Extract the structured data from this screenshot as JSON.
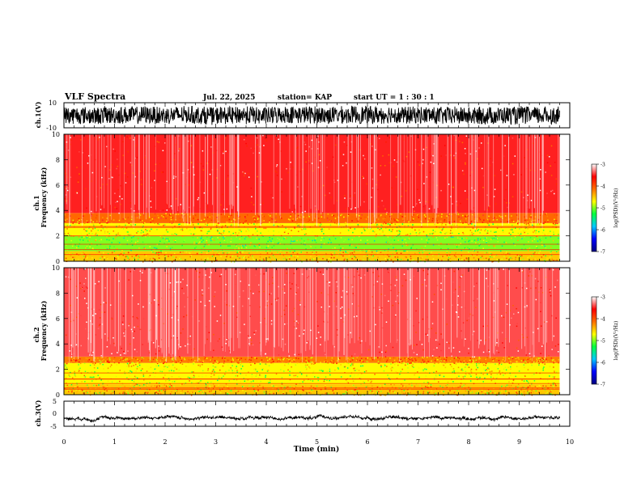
{
  "header": {
    "title": "VLF Spectra",
    "date": "Jul. 22, 2025",
    "station": "station= KAP",
    "start": "start UT =  1 : 30 : 1"
  },
  "chart_data": {
    "type": "heatmap",
    "x": {
      "label": "Time (min)",
      "range": [
        0,
        10
      ],
      "ticks": [
        "0",
        "1",
        "2",
        "3",
        "4",
        "5",
        "6",
        "7",
        "8",
        "9",
        "10"
      ],
      "data_end": 9.8
    },
    "panels": [
      {
        "name": "ch1-waveform",
        "kind": "line",
        "ylabel": "ch.1(V)",
        "yrange": [
          -10,
          10
        ],
        "yticks": [
          "10",
          "-10"
        ],
        "baseline": 0,
        "amplitude": 7
      },
      {
        "name": "ch1-spectrogram",
        "kind": "spectrogram",
        "ylabel_line1": "ch.1",
        "ylabel_line2": "Frequency (kHz)",
        "yrange": [
          0,
          10
        ],
        "yticks": [
          "0",
          "2",
          "4",
          "6",
          "8",
          "10"
        ],
        "bands": [
          {
            "from": 0,
            "to": 0.8,
            "log_psd": -4.5
          },
          {
            "from": 0.8,
            "to": 2.0,
            "log_psd": -5.0
          },
          {
            "from": 2.0,
            "to": 3.0,
            "log_psd": -4.7
          },
          {
            "from": 3.0,
            "to": 3.8,
            "log_psd": -4.1
          },
          {
            "from": 3.8,
            "to": 10,
            "log_psd": -3.5
          }
        ]
      },
      {
        "name": "ch2-spectrogram",
        "kind": "spectrogram",
        "ylabel_line1": "ch.2",
        "ylabel_line2": "Frequency (kHz)",
        "yrange": [
          0,
          10
        ],
        "yticks": [
          "0",
          "2",
          "4",
          "6",
          "8",
          "10"
        ],
        "bands": [
          {
            "from": 0,
            "to": 0.8,
            "log_psd": -4.5
          },
          {
            "from": 0.8,
            "to": 2.5,
            "log_psd": -4.7
          },
          {
            "from": 2.5,
            "to": 3.0,
            "log_psd": -4.2
          },
          {
            "from": 3.0,
            "to": 10,
            "log_psd": -3.4
          }
        ]
      },
      {
        "name": "ch3-waveform",
        "kind": "line",
        "ylabel": "ch.3(V)",
        "yrange": [
          -5,
          5
        ],
        "yticks": [
          "5",
          "0",
          "-5"
        ],
        "baseline": -1.6,
        "amplitude": 0.5
      }
    ],
    "colorbar": {
      "label": "log(PSD)(V²/Hz)",
      "range": [
        -7,
        -3
      ],
      "ticks": [
        "-3",
        "-4",
        "-5",
        "-6",
        "-7"
      ],
      "colors": [
        "#000080",
        "#0000ff",
        "#00c8ff",
        "#00ff40",
        "#ffff00",
        "#ff7000",
        "#ff0000",
        "#ffffff"
      ]
    }
  }
}
